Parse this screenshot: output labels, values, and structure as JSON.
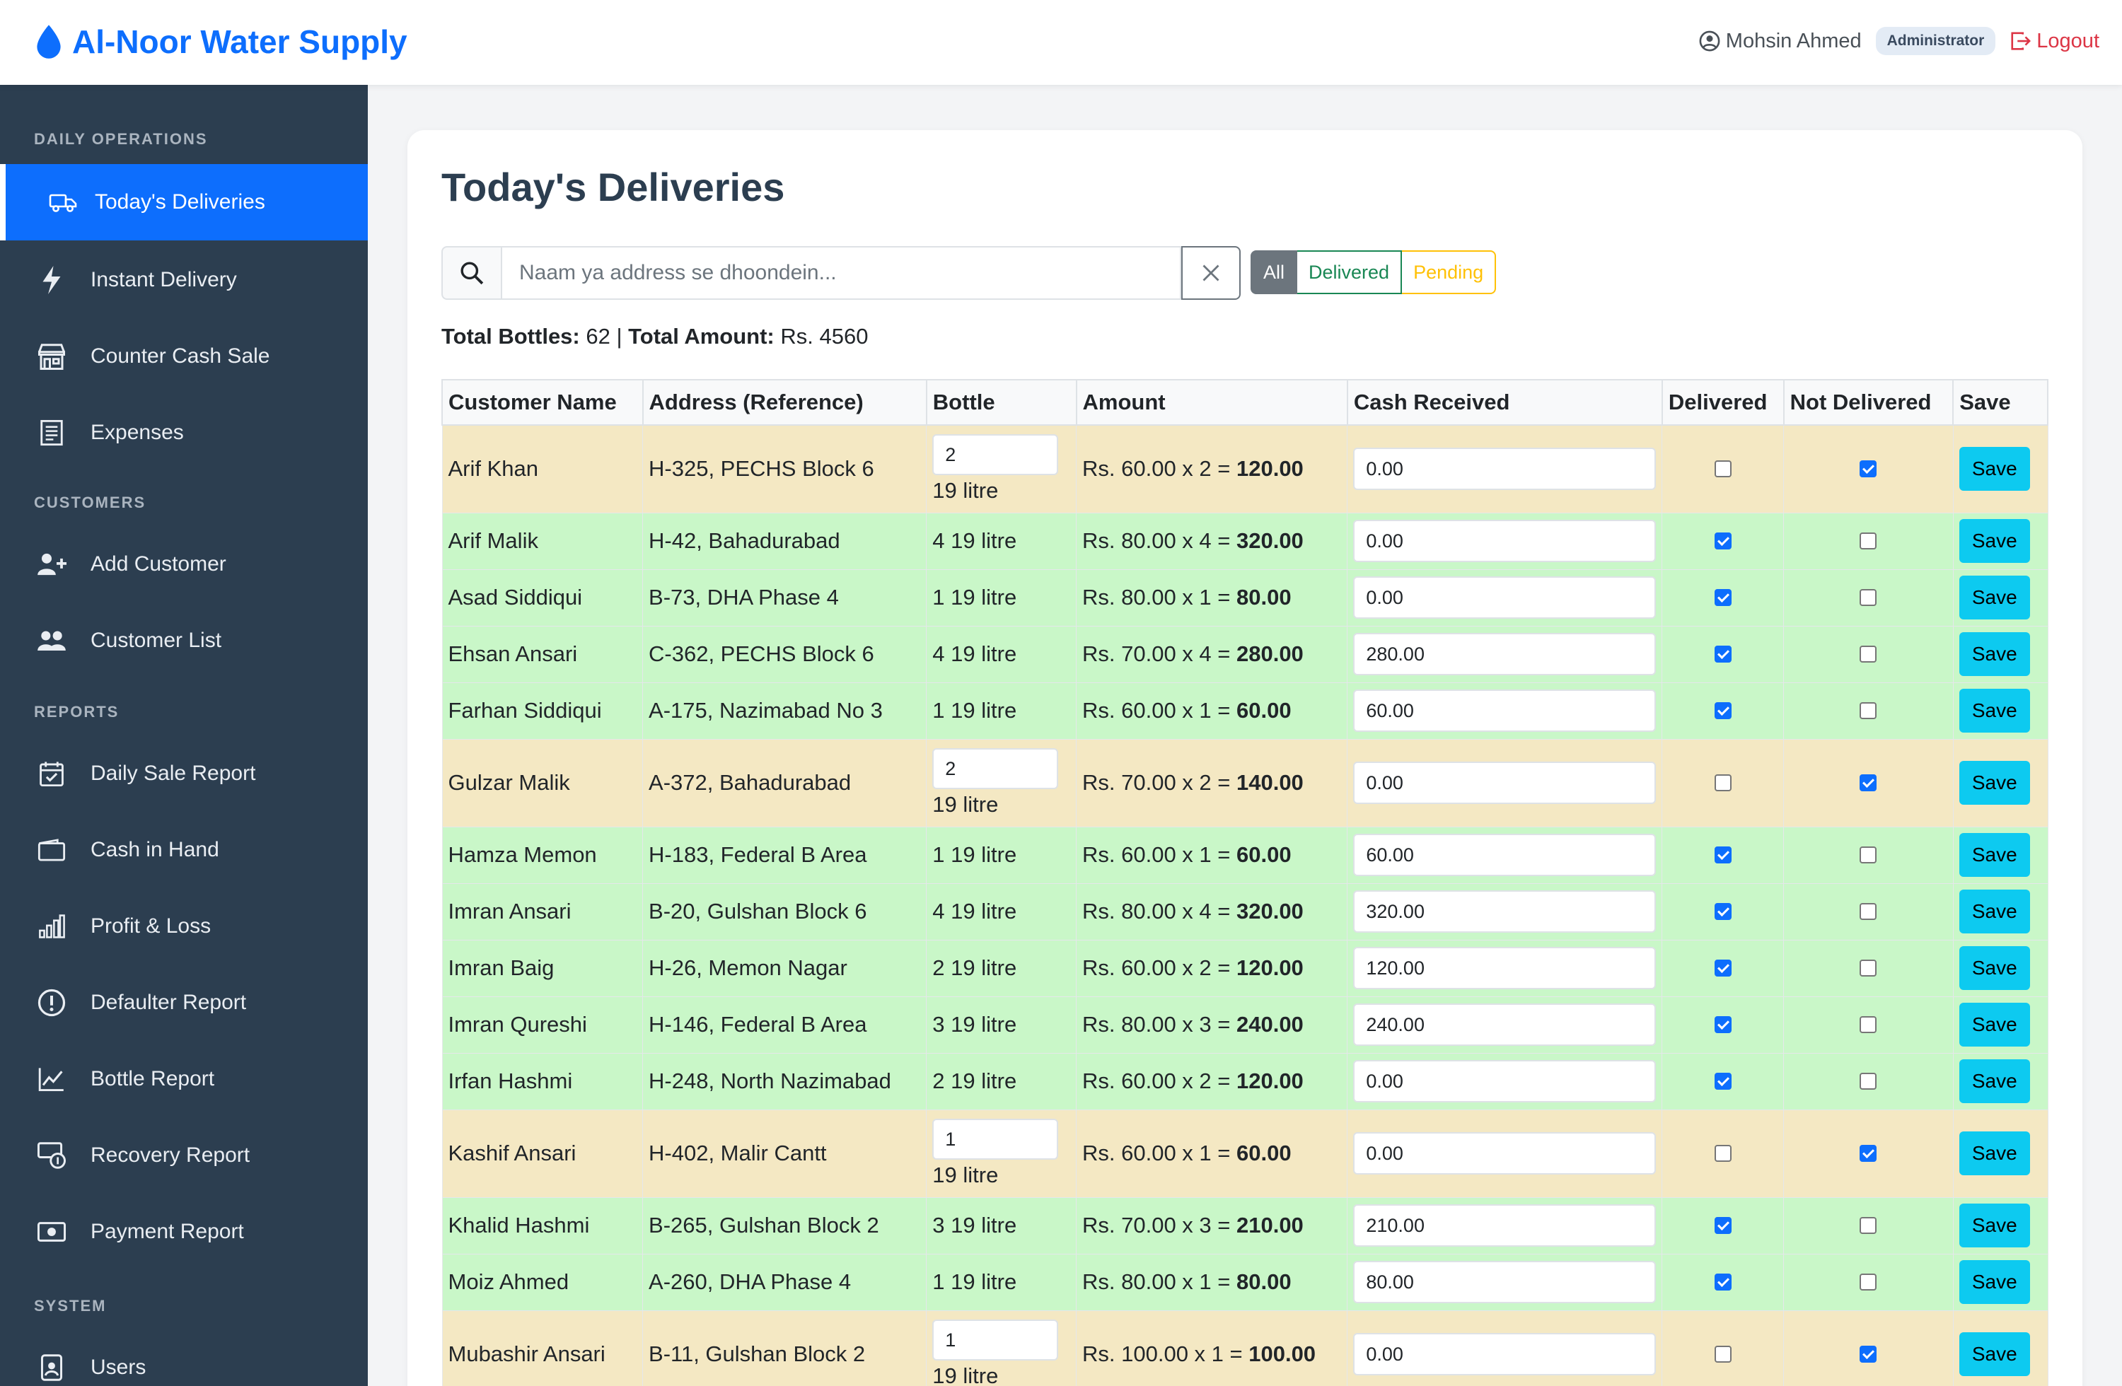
{
  "brand": {
    "name": "Al-Noor Water Supply",
    "accent": "#0d6efd"
  },
  "header": {
    "user_name": "Mohsin Ahmed",
    "role": "Administrator",
    "logout_label": "Logout"
  },
  "sidebar": {
    "sections": [
      {
        "title": "DAILY OPERATIONS",
        "items": [
          {
            "label": "Today's Deliveries",
            "icon": "truck-icon",
            "active": true
          },
          {
            "label": "Instant Delivery",
            "icon": "lightning-icon"
          },
          {
            "label": "Counter Cash Sale",
            "icon": "shop-icon"
          },
          {
            "label": "Expenses",
            "icon": "receipt-icon"
          }
        ]
      },
      {
        "title": "CUSTOMERS",
        "items": [
          {
            "label": "Add Customer",
            "icon": "person-plus-icon"
          },
          {
            "label": "Customer List",
            "icon": "people-icon"
          }
        ]
      },
      {
        "title": "REPORTS",
        "items": [
          {
            "label": "Daily Sale Report",
            "icon": "calendar-check-icon"
          },
          {
            "label": "Cash in Hand",
            "icon": "wallet-icon"
          },
          {
            "label": "Profit & Loss",
            "icon": "bar-chart-icon"
          },
          {
            "label": "Defaulter Report",
            "icon": "exclamation-circle-icon"
          },
          {
            "label": "Bottle Report",
            "icon": "line-chart-icon"
          },
          {
            "label": "Recovery Report",
            "icon": "cash-coin-icon"
          },
          {
            "label": "Payment Report",
            "icon": "cash-icon"
          }
        ]
      },
      {
        "title": "SYSTEM",
        "items": [
          {
            "label": "Users",
            "icon": "person-badge-icon"
          }
        ]
      }
    ]
  },
  "main": {
    "title": "Today's Deliveries",
    "search_placeholder": "Naam ya address se dhoondein...",
    "filters": [
      "All",
      "Delivered",
      "Pending"
    ],
    "totals": {
      "bottles_label": "Total Bottles:",
      "bottles": "62",
      "sep": " | ",
      "amount_label": "Total Amount:",
      "amount": "Rs. 4560"
    },
    "columns": [
      "Customer Name",
      "Address (Reference)",
      "Bottle",
      "Amount",
      "Cash Received",
      "Delivered",
      "Not Delivered",
      "Save"
    ],
    "save_label": "Save",
    "rows": [
      {
        "name": "Arif Khan",
        "address": "H-325, PECHS Block 6",
        "bottle_qty": "2",
        "bottle_type": "19 litre",
        "rate": "Rs. 60.00 x 2 = ",
        "total": "120.00",
        "cash": "0.00",
        "delivered": false
      },
      {
        "name": "Arif Malik",
        "address": "H-42, Bahadurabad",
        "bottle": "4 19 litre",
        "rate": "Rs. 80.00 x 4 = ",
        "total": "320.00",
        "cash": "0.00",
        "delivered": true
      },
      {
        "name": "Asad Siddiqui",
        "address": "B-73, DHA Phase 4",
        "bottle": "1 19 litre",
        "rate": "Rs. 80.00 x 1 = ",
        "total": "80.00",
        "cash": "0.00",
        "delivered": true
      },
      {
        "name": "Ehsan Ansari",
        "address": "C-362, PECHS Block 6",
        "bottle": "4 19 litre",
        "rate": "Rs. 70.00 x 4 = ",
        "total": "280.00",
        "cash": "280.00",
        "delivered": true
      },
      {
        "name": "Farhan Siddiqui",
        "address": "A-175, Nazimabad No 3",
        "bottle": "1 19 litre",
        "rate": "Rs. 60.00 x 1 = ",
        "total": "60.00",
        "cash": "60.00",
        "delivered": true
      },
      {
        "name": "Gulzar Malik",
        "address": "A-372, Bahadurabad",
        "bottle_qty": "2",
        "bottle_type": "19 litre",
        "rate": "Rs. 70.00 x 2 = ",
        "total": "140.00",
        "cash": "0.00",
        "delivered": false
      },
      {
        "name": "Hamza Memon",
        "address": "H-183, Federal B Area",
        "bottle": "1 19 litre",
        "rate": "Rs. 60.00 x 1 = ",
        "total": "60.00",
        "cash": "60.00",
        "delivered": true
      },
      {
        "name": "Imran Ansari",
        "address": "B-20, Gulshan Block 6",
        "bottle": "4 19 litre",
        "rate": "Rs. 80.00 x 4 = ",
        "total": "320.00",
        "cash": "320.00",
        "delivered": true
      },
      {
        "name": "Imran Baig",
        "address": "H-26, Memon Nagar",
        "bottle": "2 19 litre",
        "rate": "Rs. 60.00 x 2 = ",
        "total": "120.00",
        "cash": "120.00",
        "delivered": true
      },
      {
        "name": "Imran Qureshi",
        "address": "H-146, Federal B Area",
        "bottle": "3 19 litre",
        "rate": "Rs. 80.00 x 3 = ",
        "total": "240.00",
        "cash": "240.00",
        "delivered": true
      },
      {
        "name": "Irfan Hashmi",
        "address": "H-248, North Nazimabad",
        "bottle": "2 19 litre",
        "rate": "Rs. 60.00 x 2 = ",
        "total": "120.00",
        "cash": "0.00",
        "delivered": true
      },
      {
        "name": "Kashif Ansari",
        "address": "H-402, Malir Cantt",
        "bottle_qty": "1",
        "bottle_type": "19 litre",
        "rate": "Rs. 60.00 x 1 = ",
        "total": "60.00",
        "cash": "0.00",
        "delivered": false
      },
      {
        "name": "Khalid Hashmi",
        "address": "B-265, Gulshan Block 2",
        "bottle": "3 19 litre",
        "rate": "Rs. 70.00 x 3 = ",
        "total": "210.00",
        "cash": "210.00",
        "delivered": true
      },
      {
        "name": "Moiz Ahmed",
        "address": "A-260, DHA Phase 4",
        "bottle": "1 19 litre",
        "rate": "Rs. 80.00 x 1 = ",
        "total": "80.00",
        "cash": "80.00",
        "delivered": true
      },
      {
        "name": "Mubashir Ansari",
        "address": "B-11, Gulshan Block 2",
        "bottle_qty": "1",
        "bottle_type": "19 litre",
        "rate": "Rs. 100.00 x 1 = ",
        "total": "100.00",
        "cash": "0.00",
        "delivered": false
      }
    ]
  }
}
